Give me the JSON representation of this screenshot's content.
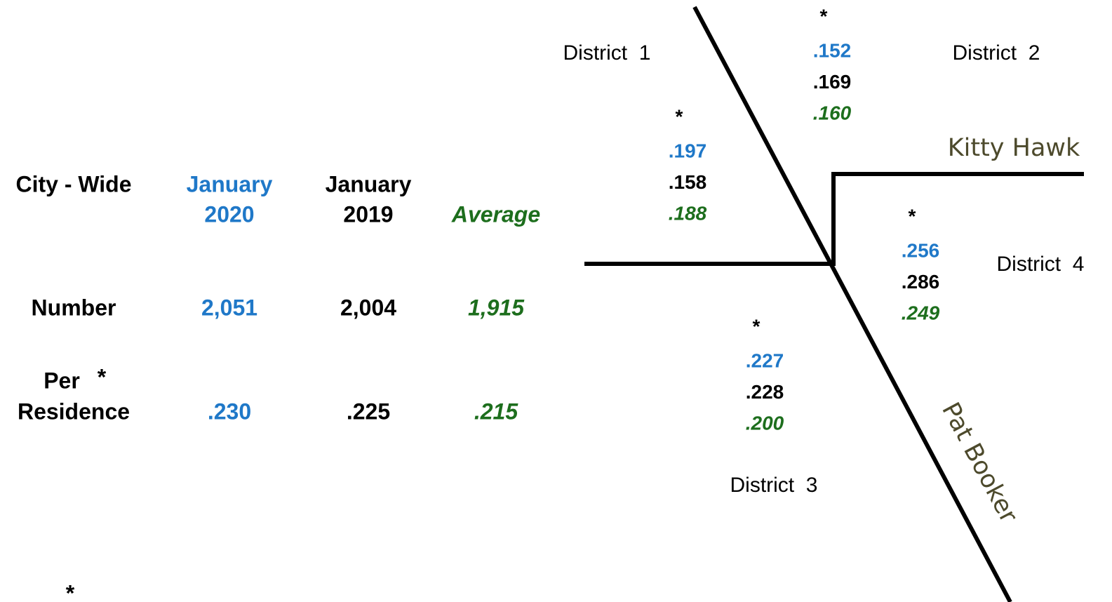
{
  "table": {
    "header": {
      "label": "City - Wide",
      "col1": [
        "January",
        "2020"
      ],
      "col2": [
        "January",
        "2019"
      ],
      "col3": "Average"
    },
    "rows": [
      {
        "label": "Number",
        "values": [
          "2,051",
          "2,004",
          "1,915"
        ]
      },
      {
        "label": "Per",
        "marker": "*",
        "label2": "Residence",
        "values": [
          ".230",
          ".225",
          ".215"
        ]
      }
    ]
  },
  "districts": [
    {
      "name": "District  1",
      "marker": "*",
      "values": [
        ".197",
        ".158",
        ".188"
      ]
    },
    {
      "name": "District  2",
      "marker": "*",
      "values": [
        ".152",
        ".169",
        ".160"
      ]
    },
    {
      "name": "District  3",
      "marker": "*",
      "values": [
        ".227",
        ".228",
        ".200"
      ]
    },
    {
      "name": "District  4",
      "marker": "*",
      "values": [
        ".256",
        ".286",
        ".249"
      ]
    }
  ],
  "roads": [
    "Kitty Hawk",
    "Pat Booker"
  ],
  "footnote_marker": "*"
}
